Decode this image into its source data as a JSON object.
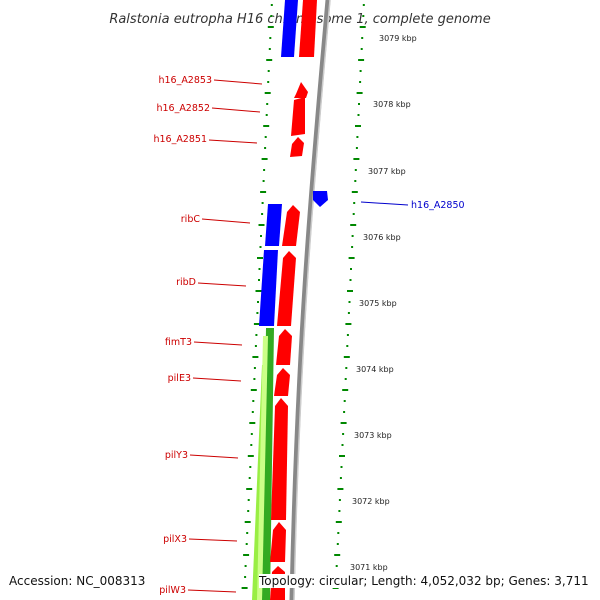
{
  "title": "Ralstonia eutropha H16 chromosome 1, complete genome",
  "accession": "Accession: NC_008313",
  "topology": "Topology: circular; Length: 4,052,032 bp; Genes: 3,711",
  "colors": {
    "forward": "#ff0000",
    "reverse": "#0000ff",
    "label_forward": "#cc0000",
    "label_reverse": "#0000cc",
    "tick": "#008800",
    "gc_bar": "#99ee44",
    "gc_dark": "#33aa22",
    "backbone": "#888888"
  },
  "scale_ticks": [
    "3079 kbp",
    "3078 kbp",
    "3077 kbp",
    "3076 kbp",
    "3075 kbp",
    "3074 kbp",
    "3073 kbp",
    "3072 kbp",
    "3071 kbp"
  ],
  "gene_labels": [
    {
      "name": "h16_A2853",
      "strand": "forward"
    },
    {
      "name": "h16_A2852",
      "strand": "forward"
    },
    {
      "name": "h16_A2851",
      "strand": "forward"
    },
    {
      "name": "h16_A2850",
      "strand": "reverse"
    },
    {
      "name": "ribC",
      "strand": "forward"
    },
    {
      "name": "ribD",
      "strand": "forward"
    },
    {
      "name": "fimT3",
      "strand": "forward"
    },
    {
      "name": "pilE3",
      "strand": "forward"
    },
    {
      "name": "pilY3",
      "strand": "forward"
    },
    {
      "name": "pilX3",
      "strand": "forward"
    },
    {
      "name": "pilW3",
      "strand": "forward"
    }
  ]
}
